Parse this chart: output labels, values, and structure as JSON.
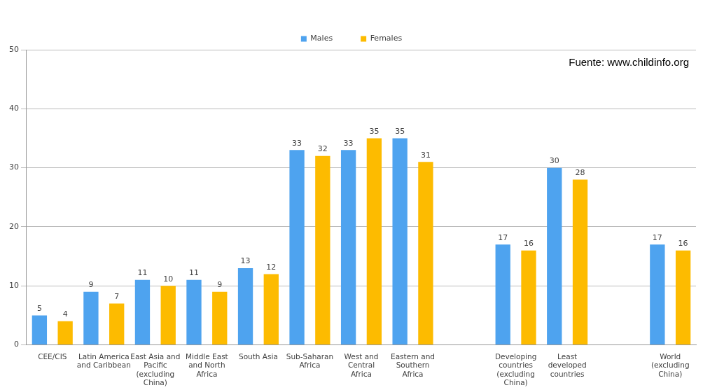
{
  "chart_data": {
    "type": "bar",
    "categories": [
      "CEE/CIS",
      "Latin America and Caribbean",
      "East Asia and Pacific (excluding China)",
      "Middle East and North Africa",
      "South Asia",
      "Sub-Saharan Africa",
      "West and Central Africa",
      "Eastern and Southern Africa",
      null,
      "Developing countries (excluding China)",
      "Least developed countries",
      null,
      "World (excluding China)"
    ],
    "series": [
      {
        "name": "Males",
        "color": "#4ea3ef",
        "values": [
          5,
          9,
          11,
          11,
          13,
          33,
          33,
          35,
          null,
          17,
          30,
          null,
          17
        ]
      },
      {
        "name": "Females",
        "color": "#fdbb00",
        "values": [
          4,
          7,
          10,
          9,
          12,
          32,
          35,
          31,
          null,
          16,
          28,
          null,
          16
        ]
      }
    ],
    "ylim": [
      0,
      50
    ],
    "yticks": [
      0,
      10,
      20,
      30,
      40,
      50
    ],
    "grid": "y",
    "legend": "top",
    "data_labels": true,
    "annotations": [
      "Fuente: www.childinfo.org"
    ]
  }
}
